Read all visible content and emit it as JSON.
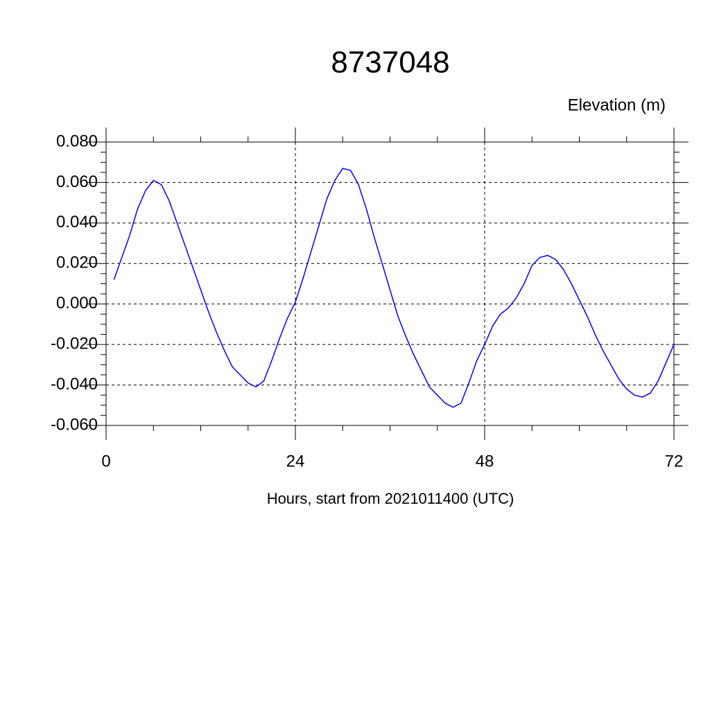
{
  "chart_data": {
    "type": "line",
    "title": "8737048",
    "ylabel": "Elevation (m)",
    "xlabel": "Hours, start from 2021011400 (UTC)",
    "x": [
      1,
      2,
      3,
      4,
      5,
      6,
      7,
      8,
      9,
      10,
      11,
      12,
      13,
      14,
      15,
      16,
      17,
      18,
      19,
      20,
      21,
      22,
      23,
      24,
      25,
      26,
      27,
      28,
      29,
      30,
      31,
      32,
      33,
      34,
      35,
      36,
      37,
      38,
      39,
      40,
      41,
      42,
      43,
      44,
      45,
      46,
      47,
      48,
      49,
      50,
      51,
      52,
      53,
      54,
      55,
      56,
      57,
      58,
      59,
      60,
      61,
      62,
      63,
      64,
      65,
      66,
      67,
      68,
      69,
      70,
      71,
      72
    ],
    "series": [
      {
        "color": "#0000ff",
        "values": [
          0.012,
          0.023,
          0.034,
          0.047,
          0.056,
          0.061,
          0.059,
          0.051,
          0.04,
          0.029,
          0.018,
          0.007,
          -0.004,
          -0.014,
          -0.023,
          -0.031,
          -0.035,
          -0.039,
          -0.041,
          -0.038,
          -0.028,
          -0.017,
          -0.007,
          0.001,
          0.013,
          0.026,
          0.039,
          0.052,
          0.061,
          0.067,
          0.066,
          0.059,
          0.047,
          0.033,
          0.02,
          0.007,
          -0.006,
          -0.016,
          -0.025,
          -0.033,
          -0.041,
          -0.045,
          -0.049,
          -0.051,
          -0.049,
          -0.039,
          -0.028,
          -0.02,
          -0.011,
          -0.005,
          -0.002,
          0.003,
          0.01,
          0.019,
          0.023,
          0.024,
          0.022,
          0.017,
          0.01,
          0.002,
          -0.006,
          -0.015,
          -0.023,
          -0.03,
          -0.037,
          -0.042,
          -0.045,
          -0.046,
          -0.044,
          -0.038,
          -0.029,
          -0.02
        ]
      }
    ],
    "xlim": [
      0,
      72
    ],
    "xticks": [
      0,
      24,
      48,
      72
    ],
    "ylim": [
      -0.06,
      0.08
    ],
    "yticks": [
      {
        "value": -0.06,
        "label": "-0.060"
      },
      {
        "value": -0.04,
        "label": "-0.040"
      },
      {
        "value": -0.02,
        "label": "-0.020"
      },
      {
        "value": 0,
        "label": "0.000"
      },
      {
        "value": 0.02,
        "label": "0.020"
      },
      {
        "value": 0.04,
        "label": "0.040"
      },
      {
        "value": 0.06,
        "label": "0.060"
      },
      {
        "value": 0.08,
        "label": "0.080"
      }
    ],
    "grid": true
  }
}
